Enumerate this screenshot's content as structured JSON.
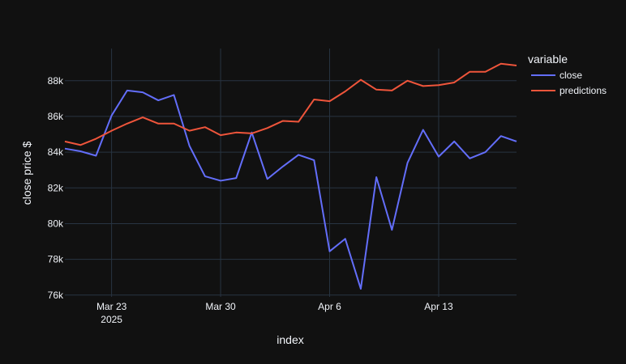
{
  "chart_data": {
    "type": "line",
    "xlabel": "index",
    "ylabel": "close price $",
    "x": [
      "2025-03-20",
      "2025-03-21",
      "2025-03-22",
      "2025-03-23",
      "2025-03-24",
      "2025-03-25",
      "2025-03-26",
      "2025-03-27",
      "2025-03-28",
      "2025-03-29",
      "2025-03-30",
      "2025-03-31",
      "2025-04-01",
      "2025-04-02",
      "2025-04-03",
      "2025-04-04",
      "2025-04-05",
      "2025-04-06",
      "2025-04-07",
      "2025-04-08",
      "2025-04-09",
      "2025-04-10",
      "2025-04-11",
      "2025-04-12",
      "2025-04-13",
      "2025-04-14",
      "2025-04-15",
      "2025-04-16",
      "2025-04-17",
      "2025-04-18"
    ],
    "xlim": [
      "2025-03-20",
      "2025-04-18"
    ],
    "ylim": [
      75900,
      89800
    ],
    "x_ticks": [
      {
        "date": "2025-03-23",
        "label": "Mar 23",
        "sublabel": "2025"
      },
      {
        "date": "2025-03-30",
        "label": "Mar 30",
        "sublabel": ""
      },
      {
        "date": "2025-04-06",
        "label": "Apr 6",
        "sublabel": ""
      },
      {
        "date": "2025-04-13",
        "label": "Apr 13",
        "sublabel": ""
      }
    ],
    "y_ticks": [
      {
        "value": 76000,
        "label": "76k"
      },
      {
        "value": 78000,
        "label": "78k"
      },
      {
        "value": 80000,
        "label": "80k"
      },
      {
        "value": 82000,
        "label": "82k"
      },
      {
        "value": 84000,
        "label": "84k"
      },
      {
        "value": 86000,
        "label": "86k"
      },
      {
        "value": 88000,
        "label": "88k"
      }
    ],
    "legend": {
      "title": "variable",
      "position": "top-right outside"
    },
    "grid": true,
    "series": [
      {
        "name": "close",
        "color": "#636efa",
        "values": [
          84200,
          84050,
          83800,
          86050,
          87450,
          87350,
          86900,
          87200,
          84350,
          82650,
          82400,
          82550,
          85100,
          82500,
          83200,
          83850,
          83550,
          78450,
          79150,
          76350,
          82600,
          79650,
          83400,
          85250,
          83750,
          84600,
          83650,
          84000,
          84900,
          84600
        ]
      },
      {
        "name": "predictions",
        "color": "#ef553b",
        "values": [
          84600,
          84400,
          84750,
          85200,
          85600,
          85950,
          85600,
          85600,
          85200,
          85400,
          84950,
          85100,
          85050,
          85350,
          85750,
          85700,
          86950,
          86850,
          87400,
          88050,
          87500,
          87450,
          88000,
          87700,
          87750,
          87900,
          88500,
          88500,
          88950,
          88850
        ]
      }
    ]
  }
}
